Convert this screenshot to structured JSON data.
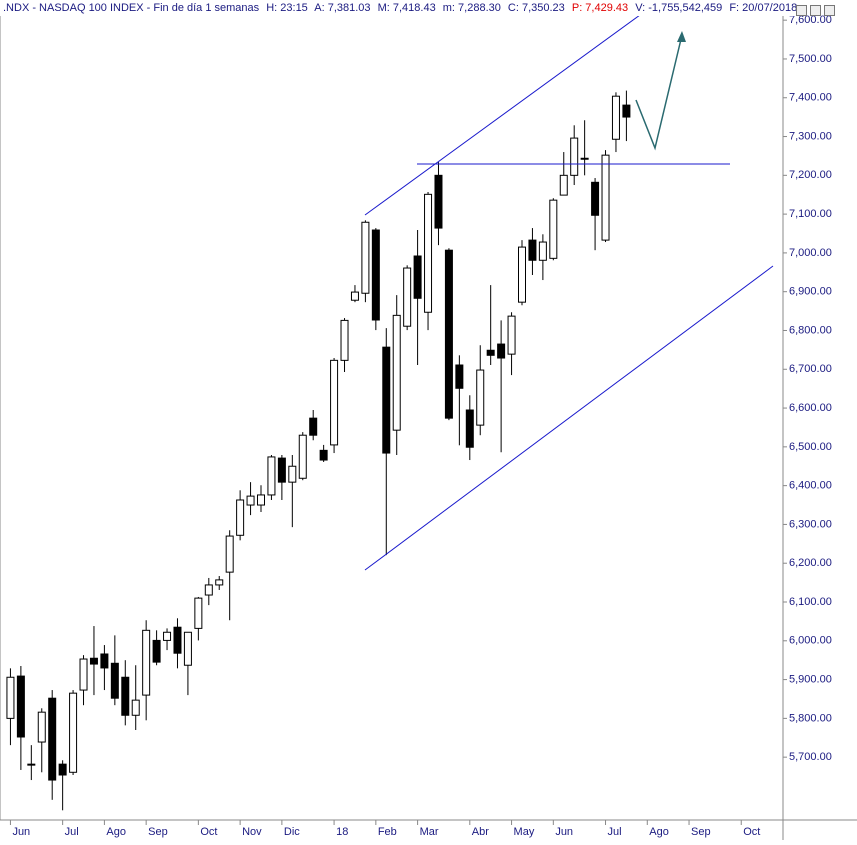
{
  "chart_data": {
    "type": "candlestick",
    "title": ".NDX - NASDAQ 100 INDEX - Fin de día 1 semanas",
    "info": [
      "H: 23:15",
      "A: 7,381.03",
      "M: 7,418.43",
      "m: 7,288.30",
      "C: 7,350.23",
      "P: 7,429.43",
      "V: -1,755,542,459",
      "F: 20/07/2018"
    ],
    "categories": [
      null,
      null,
      null,
      null,
      null,
      null,
      null,
      null,
      null,
      null,
      null,
      null,
      null,
      null,
      null,
      null,
      null,
      null,
      null,
      null,
      null,
      null,
      null,
      null,
      null,
      null,
      null,
      null,
      null,
      null,
      null,
      null,
      null,
      null,
      null,
      null,
      null,
      null,
      null,
      null,
      null,
      null,
      null,
      null,
      null,
      null,
      null,
      null,
      null,
      null,
      null,
      null,
      null,
      null,
      null,
      null,
      null,
      null,
      null,
      null
    ],
    "open": [
      5800,
      5909,
      5682,
      5739,
      5852,
      5682,
      5661,
      5873,
      5955,
      5966,
      5942,
      5906,
      5808,
      5860,
      6001,
      6001,
      6035,
      5937,
      6032,
      6118,
      6144,
      6177,
      6272,
      6350,
      6350,
      6376,
      6471,
      6409,
      6419,
      6574,
      6491,
      6505,
      6723,
      6878,
      6896,
      7059,
      6757,
      6543,
      6811,
      6992,
      6847,
      7200,
      7007,
      6711,
      6595,
      6556,
      6749,
      6765,
      6739,
      6873,
      7033,
      6981,
      6986,
      7149,
      7200,
      7242,
      7182,
      7033,
      7293,
      7381.03
    ],
    "high": [
      5929,
      5935,
      5731,
      5826,
      5873,
      5692,
      5873,
      5963,
      6038,
      5989,
      6014,
      5950,
      5937,
      6053,
      6027,
      6032,
      6058,
      6022,
      6113,
      6162,
      6167,
      6285,
      6388,
      6409,
      6401,
      6479,
      6479,
      6479,
      6538,
      6595,
      6505,
      6729,
      6832,
      6917,
      7084,
      7064,
      6806,
      6891,
      6968,
      7059,
      7157,
      7234,
      7012,
      6736,
      6633,
      6762,
      6917,
      6826,
      6847,
      7033,
      7064,
      7048,
      7141,
      7260,
      7329,
      7342,
      7193,
      7265,
      7414,
      7418.43
    ],
    "low": [
      5731,
      5667,
      5641,
      5661,
      5590,
      5563,
      5654,
      5834,
      5860,
      5873,
      5834,
      5782,
      5770,
      5795,
      5937,
      5976,
      5929,
      5860,
      6001,
      6092,
      6131,
      6053,
      6259,
      6324,
      6332,
      6363,
      6363,
      6293,
      6414,
      6517,
      6461,
      6484,
      6693,
      6873,
      6873,
      6801,
      6221,
      6479,
      6801,
      6711,
      6801,
      7020,
      6569,
      6504,
      6466,
      6530,
      6711,
      6486,
      6685,
      6865,
      6943,
      6930,
      6981,
      7149,
      7175,
      7200,
      7007,
      7028,
      7260,
      7288.3
    ],
    "close": [
      5906,
      5752,
      5680,
      5816,
      5641,
      5654,
      5865,
      5953,
      5940,
      5930,
      5852,
      5808,
      5847,
      6027,
      5945,
      6022,
      5968,
      6022,
      6110,
      6144,
      6157,
      6270,
      6363,
      6373,
      6376,
      6474,
      6409,
      6450,
      6530,
      6530,
      6466,
      6723,
      6826,
      6899,
      7079,
      6827,
      6484,
      6839,
      6961,
      6883,
      7151,
      7064,
      6574,
      6651,
      6499,
      6698,
      6736,
      6729,
      6837,
      7015,
      6981,
      7028,
      7136,
      7200,
      7296,
      7244,
      7097,
      7252,
      7404,
      7350.23
    ],
    "up_color": "#ffffff",
    "down_color": "#000000",
    "ylim": [
      5538,
      7652
    ],
    "yticks": [
      {
        "value": 5700,
        "label": "5,700.00"
      },
      {
        "value": 5800,
        "label": "5,800.00"
      },
      {
        "value": 5900,
        "label": "5,900.00"
      },
      {
        "value": 6000,
        "label": "6,000.00"
      },
      {
        "value": 6100,
        "label": "6,100.00"
      },
      {
        "value": 6200,
        "label": "6,200.00"
      },
      {
        "value": 6300,
        "label": "6,300.00"
      },
      {
        "value": 6400,
        "label": "6,400.00"
      },
      {
        "value": 6500,
        "label": "6,500.00"
      },
      {
        "value": 6600,
        "label": "6,600.00"
      },
      {
        "value": 6700,
        "label": "6,700.00"
      },
      {
        "value": 6800,
        "label": "6,800.00"
      },
      {
        "value": 6900,
        "label": "6,900.00"
      },
      {
        "value": 7000,
        "label": "7,000.00"
      },
      {
        "value": 7100,
        "label": "7,100.00"
      },
      {
        "value": 7200,
        "label": "7,200.00"
      },
      {
        "value": 7300,
        "label": "7,300.00"
      },
      {
        "value": 7400,
        "label": "7,400.00"
      },
      {
        "value": 7500,
        "label": "7,500.00"
      },
      {
        "value": 7600,
        "label": "7,600.00"
      }
    ],
    "xlim": [
      -1,
      74
    ],
    "xticks": [
      {
        "value": 0,
        "label": "Jun"
      },
      {
        "value": 5,
        "label": "Jul"
      },
      {
        "value": 9,
        "label": "Ago"
      },
      {
        "value": 13,
        "label": "Sep"
      },
      {
        "value": 18,
        "label": "Oct"
      },
      {
        "value": 22,
        "label": "Nov"
      },
      {
        "value": 26,
        "label": "Dic"
      },
      {
        "value": 31,
        "label": "18"
      },
      {
        "value": 35,
        "label": "Feb"
      },
      {
        "value": 39,
        "label": "Mar"
      },
      {
        "value": 44,
        "label": "Abr"
      },
      {
        "value": 48,
        "label": "May"
      },
      {
        "value": 52,
        "label": "Jun"
      },
      {
        "value": 57,
        "label": "Jul"
      },
      {
        "value": 61,
        "label": "Ago"
      },
      {
        "value": 65,
        "label": "Sep"
      },
      {
        "value": 70,
        "label": "Oct"
      }
    ]
  }
}
